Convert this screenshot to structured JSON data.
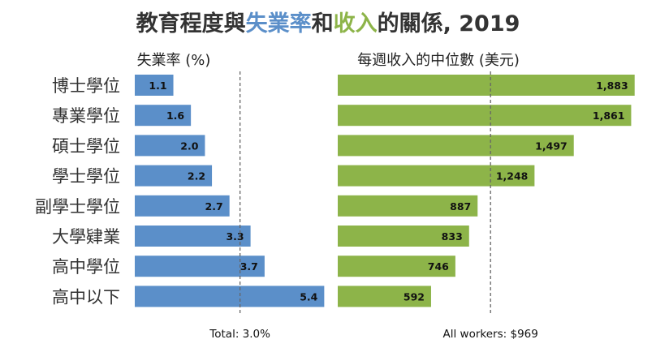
{
  "title": {
    "part1": "教育程度與",
    "part2": "失業率",
    "part3": "和",
    "part4": "收入",
    "part5": "的關係, 2019"
  },
  "colors": {
    "blue": "#5B8FC9",
    "green": "#8DB449",
    "title_dark": "#333333",
    "dashed": "#666666"
  },
  "chart_data": [
    {
      "type": "bar",
      "orientation": "horizontal",
      "title": "失業率 (%)",
      "categories": [
        "博士學位",
        "專業學位",
        "碩士學位",
        "學士學位",
        "副學士學位",
        "大學肄業",
        "高中學位",
        "高中以下"
      ],
      "values": [
        1.1,
        1.6,
        2.0,
        2.2,
        2.7,
        3.3,
        3.7,
        5.4
      ],
      "value_labels": [
        "1.1",
        "1.6",
        "2.0",
        "2.2",
        "2.7",
        "3.3",
        "3.7",
        "5.4"
      ],
      "reference_line": {
        "value": 3.0,
        "label": "Total: 3.0%"
      },
      "xlim": [
        0,
        5.6
      ],
      "color": "#5B8FC9"
    },
    {
      "type": "bar",
      "orientation": "horizontal",
      "title": "每週收入的中位數 (美元)",
      "categories": [
        "博士學位",
        "專業學位",
        "碩士學位",
        "學士學位",
        "副學士學位",
        "大學肄業",
        "高中學位",
        "高中以下"
      ],
      "values": [
        1883,
        1861,
        1497,
        1248,
        887,
        833,
        746,
        592
      ],
      "value_labels": [
        "1,883",
        "1,861",
        "1,497",
        "1,248",
        "887",
        "833",
        "746",
        "592"
      ],
      "reference_line": {
        "value": 969,
        "label": "All workers: $969"
      },
      "xlim": [
        0,
        1900
      ],
      "color": "#8DB449"
    }
  ]
}
